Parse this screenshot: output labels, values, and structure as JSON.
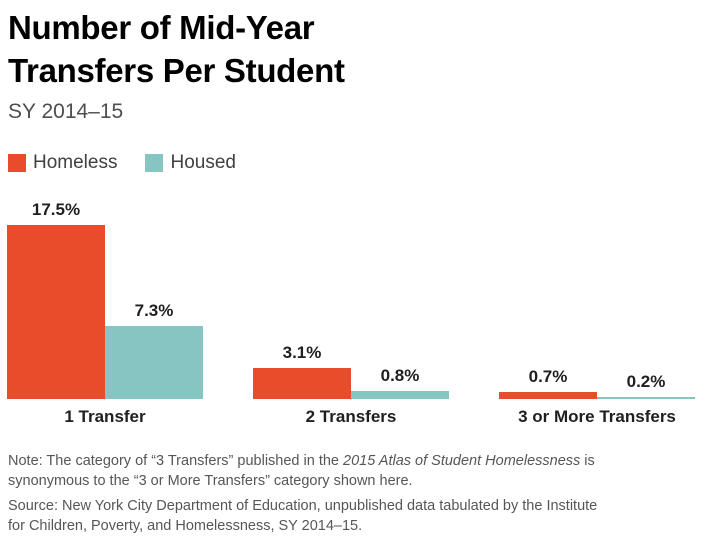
{
  "header": {
    "title_lines": [
      "Number of Mid-Year",
      "Transfers Per Student"
    ],
    "subtitle": "SY 2014–15"
  },
  "legend": {
    "items": [
      {
        "label": "Homeless",
        "color": "#E84C2B"
      },
      {
        "label": "Housed",
        "color": "#85C6C3"
      }
    ]
  },
  "chart_data": {
    "type": "bar",
    "title": "Number of Mid-Year Transfers Per Student",
    "subtitle": "SY 2014–15",
    "categories": [
      "1 Transfer",
      "2 Transfers",
      "3 or More Transfers"
    ],
    "series": [
      {
        "name": "Homeless",
        "color": "#E84C2B",
        "values": [
          17.5,
          3.1,
          0.7
        ],
        "labels": [
          "17.5%",
          "3.1%",
          "0.7%"
        ]
      },
      {
        "name": "Housed",
        "color": "#85C6C3",
        "values": [
          7.3,
          0.8,
          0.2
        ],
        "labels": [
          "7.3%",
          "0.8%",
          "0.2%"
        ]
      }
    ],
    "unit": "%",
    "ylim": [
      0,
      20
    ],
    "grid": false,
    "value_axis_visible": false,
    "legend_position": "top-left",
    "value_labels_shown": true
  },
  "notes": {
    "note_prefix": "Note: The category of “3 Transfers” published in the ",
    "note_italic": "2015 Atlas of Student Homelessness",
    "note_suffix": " is synonymous to the “3 or More Transfers” category shown here.",
    "source": "Source: New York City Department of Education, unpublished data tabulated by the Institute for Children, Poverty, and Homelessness, SY 2014–15."
  }
}
